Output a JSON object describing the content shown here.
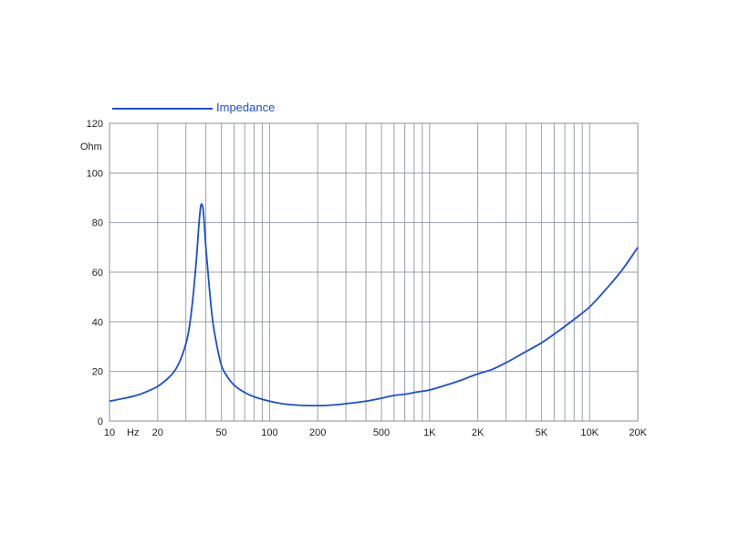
{
  "chart_data": {
    "type": "line",
    "legend": {
      "label": "Impedance",
      "placement": "top-left"
    },
    "ylabel": "Ohm",
    "xunit": "Hz",
    "xscale": "log",
    "xlim": [
      10,
      20000
    ],
    "ylim": [
      0,
      120
    ],
    "grid": true,
    "series_color": "#1a4fd6",
    "x_ticks": [
      {
        "value": 10,
        "label": "10"
      },
      {
        "value": 20,
        "label": "20"
      },
      {
        "value": 50,
        "label": "50"
      },
      {
        "value": 100,
        "label": "100"
      },
      {
        "value": 200,
        "label": "200"
      },
      {
        "value": 500,
        "label": "500"
      },
      {
        "value": 1000,
        "label": "1K"
      },
      {
        "value": 2000,
        "label": "2K"
      },
      {
        "value": 5000,
        "label": "5K"
      },
      {
        "value": 10000,
        "label": "10K"
      },
      {
        "value": 20000,
        "label": "20K"
      }
    ],
    "y_ticks": [
      {
        "value": 0,
        "label": "0"
      },
      {
        "value": 20,
        "label": "20"
      },
      {
        "value": 40,
        "label": "40"
      },
      {
        "value": 60,
        "label": "60"
      },
      {
        "value": 80,
        "label": "80"
      },
      {
        "value": 100,
        "label": "100"
      },
      {
        "value": 120,
        "label": "120"
      }
    ],
    "series": [
      {
        "name": "Impedance",
        "points": [
          [
            10,
            8
          ],
          [
            12,
            9
          ],
          [
            15,
            10.5
          ],
          [
            18,
            12.5
          ],
          [
            20,
            14
          ],
          [
            23,
            17
          ],
          [
            26,
            21
          ],
          [
            29,
            28
          ],
          [
            31,
            35
          ],
          [
            33,
            48
          ],
          [
            35,
            66
          ],
          [
            36.5,
            82
          ],
          [
            37.5,
            87.5
          ],
          [
            38.5,
            85
          ],
          [
            40,
            70
          ],
          [
            42,
            54
          ],
          [
            44,
            41
          ],
          [
            47,
            30
          ],
          [
            50,
            22.5
          ],
          [
            55,
            17.5
          ],
          [
            60,
            14.5
          ],
          [
            70,
            11.5
          ],
          [
            80,
            9.8
          ],
          [
            100,
            8
          ],
          [
            120,
            7
          ],
          [
            150,
            6.4
          ],
          [
            200,
            6.2
          ],
          [
            250,
            6.5
          ],
          [
            300,
            7
          ],
          [
            400,
            8
          ],
          [
            500,
            9.2
          ],
          [
            600,
            10.3
          ],
          [
            700,
            10.8
          ],
          [
            800,
            11.5
          ],
          [
            1000,
            12.5
          ],
          [
            1200,
            14
          ],
          [
            1500,
            16
          ],
          [
            2000,
            19
          ],
          [
            2500,
            21
          ],
          [
            3000,
            23.5
          ],
          [
            4000,
            28
          ],
          [
            5000,
            31.5
          ],
          [
            6000,
            35
          ],
          [
            8000,
            41
          ],
          [
            10000,
            46
          ],
          [
            13000,
            54
          ],
          [
            16000,
            61
          ],
          [
            20000,
            70
          ]
        ]
      }
    ]
  }
}
